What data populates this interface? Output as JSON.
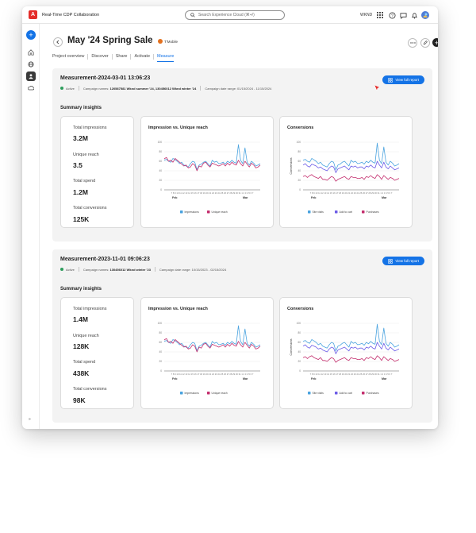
{
  "app": {
    "title": "Real-Time CDP Collaboration",
    "logo_letter": "A"
  },
  "search": {
    "placeholder": "Search Experience Cloud (⌘+/)"
  },
  "org": {
    "name": "WKND"
  },
  "page": {
    "title": "May '24 Spring Sale",
    "badge": "T’Mobile"
  },
  "tabs": [
    {
      "label": "Project overview",
      "active": false
    },
    {
      "label": "Discover",
      "active": false
    },
    {
      "label": "Share",
      "active": false
    },
    {
      "label": "Activate",
      "active": false
    },
    {
      "label": "Measure",
      "active": true
    }
  ],
  "view_full_report_label": "View full report",
  "summary_label": "Summary insights",
  "measurements": [
    {
      "title": "Measurement-2024-03-01 13:06:23",
      "status": "Active",
      "campaign_prefix": "Campaign names:",
      "campaign_names": "120587581 Wknd summer '24, 130456012 Wknd winter '24",
      "date_range": "Campaign date range: 01/15/2024 - 11/15/2024",
      "stats": [
        {
          "label": "Total impressions",
          "value": "3.2M"
        },
        {
          "label": "Unique reach",
          "value": "3.5"
        },
        {
          "label": "Total spend",
          "value": "1.2M"
        },
        {
          "label": "Total conversions",
          "value": "125K"
        }
      ]
    },
    {
      "title": "Measurement-2023-11-01 09:06:23",
      "status": "Active",
      "campaign_prefix": "Campaign names:",
      "campaign_names": "130456012 Wknd winter '23",
      "date_range": "Campaign date range: 10/15/2023 - 02/15/2024",
      "stats": [
        {
          "label": "Total impressions",
          "value": "1.4M"
        },
        {
          "label": "Unique reach",
          "value": "128K"
        },
        {
          "label": "Total spend",
          "value": "438K"
        },
        {
          "label": "Total conversions",
          "value": "98K"
        }
      ]
    }
  ],
  "colors": {
    "accent": "#1473e6",
    "impressions": "#4aa3df",
    "unique_reach": "#c42f6e",
    "site_visits": "#4aa3df",
    "add_to_cart": "#6c5ce7",
    "purchases": "#c42f6e"
  },
  "icons": {
    "back": "chevron-left-icon",
    "more": "more-icon",
    "edit": "pencil-icon",
    "add": "add-icon",
    "apps": "apps-grid-icon",
    "help": "help-icon",
    "chat": "chat-icon",
    "notifications": "bell-icon",
    "avatar": "avatar-icon"
  },
  "rail_expand": "»",
  "chart_data": [
    {
      "type": "line",
      "title": "Impression vs. Unique reach",
      "ylim": [
        0,
        100
      ],
      "yticks": [
        "100",
        "80",
        "60",
        "40",
        "20",
        "0"
      ],
      "xticks": "7 8 9 10 11 12 13 14 15 16 17 18 19 20 21 22 23 24 25 26 27 28 29 30 31 1 2 3 4 5 6 7",
      "months": [
        "Feb",
        "Mar"
      ],
      "series": [
        {
          "name": "Impressions",
          "values": [
            62,
            64,
            60,
            58,
            66,
            63,
            60,
            55,
            58,
            52,
            50,
            48,
            55,
            60,
            58,
            42,
            52,
            54,
            58,
            60,
            55,
            50,
            62,
            58,
            60,
            55,
            56,
            58,
            54,
            60,
            57,
            62,
            58,
            56,
            95,
            62,
            55,
            88,
            58,
            52,
            60,
            56,
            50,
            52,
            55
          ]
        },
        {
          "name": "Unique reach",
          "values": [
            65,
            68,
            60,
            62,
            58,
            66,
            62,
            58,
            54,
            50,
            52,
            46,
            48,
            55,
            52,
            40,
            50,
            48,
            56,
            58,
            52,
            48,
            56,
            54,
            52,
            50,
            52,
            55,
            50,
            56,
            52,
            58,
            54,
            52,
            62,
            55,
            50,
            60,
            54,
            48,
            56,
            52,
            46,
            48,
            52
          ]
        }
      ]
    },
    {
      "type": "line",
      "title": "Conversions",
      "ylabel": "Conversions",
      "ylim": [
        0,
        100
      ],
      "yticks": [
        "100",
        "80",
        "60",
        "40",
        "20",
        "0"
      ],
      "xticks": "7 8 9 10 11 12 13 14 15 16 17 18 19 20 21 22 23 24 25 26 27 28 29 30 31 1 2 3 4 5 6 7",
      "months": [
        "Feb",
        "Mar"
      ],
      "series": [
        {
          "name": "Site visits",
          "values": [
            62,
            64,
            60,
            58,
            66,
            63,
            60,
            55,
            58,
            52,
            50,
            48,
            55,
            60,
            58,
            42,
            52,
            54,
            58,
            60,
            55,
            50,
            62,
            58,
            60,
            55,
            56,
            58,
            54,
            60,
            57,
            62,
            58,
            56,
            98,
            62,
            55,
            90,
            58,
            52,
            60,
            56,
            50,
            52,
            55
          ]
        },
        {
          "name": "Add to cart",
          "values": [
            52,
            55,
            50,
            48,
            54,
            52,
            50,
            46,
            48,
            44,
            42,
            40,
            46,
            50,
            48,
            36,
            44,
            46,
            48,
            50,
            46,
            42,
            50,
            48,
            50,
            46,
            48,
            48,
            44,
            50,
            48,
            52,
            48,
            46,
            60,
            52,
            46,
            58,
            48,
            44,
            50,
            46,
            42,
            44,
            46
          ]
        },
        {
          "name": "Purchases",
          "values": [
            28,
            30,
            26,
            30,
            32,
            28,
            26,
            24,
            28,
            22,
            22,
            20,
            24,
            28,
            26,
            18,
            22,
            24,
            26,
            28,
            24,
            22,
            28,
            26,
            26,
            24,
            24,
            26,
            22,
            28,
            26,
            30,
            26,
            24,
            32,
            28,
            22,
            30,
            26,
            22,
            26,
            24,
            20,
            22,
            24
          ]
        }
      ]
    },
    {
      "type": "line",
      "title": "Impression vs. Unique reach",
      "ylim": [
        0,
        100
      ],
      "yticks": [
        "100",
        "80",
        "60",
        "40",
        "20",
        "0"
      ],
      "xticks": "7 8 9 10 11 12 13 14 15 16 17 18 19 20 21 22 23 24 25 26 27 28 29 30 31 1 2 3 4 5 6 7",
      "months": [
        "Feb",
        "Mar"
      ],
      "series": [
        {
          "name": "Impressions",
          "values": [
            62,
            64,
            60,
            58,
            66,
            63,
            60,
            55,
            58,
            52,
            50,
            48,
            55,
            60,
            58,
            42,
            52,
            54,
            58,
            60,
            55,
            50,
            62,
            58,
            60,
            55,
            56,
            58,
            54,
            60,
            57,
            62,
            58,
            56,
            95,
            62,
            55,
            88,
            58,
            52,
            60,
            56,
            50,
            52,
            55
          ]
        },
        {
          "name": "Unique reach",
          "values": [
            65,
            68,
            60,
            62,
            58,
            66,
            62,
            58,
            54,
            50,
            52,
            46,
            48,
            55,
            52,
            40,
            50,
            48,
            56,
            58,
            52,
            48,
            56,
            54,
            52,
            50,
            52,
            55,
            50,
            56,
            52,
            58,
            54,
            52,
            62,
            55,
            50,
            60,
            54,
            48,
            56,
            52,
            46,
            48,
            52
          ]
        }
      ]
    },
    {
      "type": "line",
      "title": "Conversions",
      "ylabel": "Conversions",
      "ylim": [
        0,
        100
      ],
      "yticks": [
        "100",
        "80",
        "60",
        "40",
        "20",
        "0"
      ],
      "xticks": "7 8 9 10 11 12 13 14 15 16 17 18 19 20 21 22 23 24 25 26 27 28 29 30 31 1 2 3 4 5 6 7",
      "months": [
        "Feb",
        "Mar"
      ],
      "series": [
        {
          "name": "Site visits",
          "values": [
            62,
            64,
            60,
            58,
            66,
            63,
            60,
            55,
            58,
            52,
            50,
            48,
            55,
            60,
            58,
            42,
            52,
            54,
            58,
            60,
            55,
            50,
            62,
            58,
            60,
            55,
            56,
            58,
            54,
            60,
            57,
            62,
            58,
            56,
            98,
            62,
            55,
            90,
            58,
            52,
            60,
            56,
            50,
            52,
            55
          ]
        },
        {
          "name": "Add to cart",
          "values": [
            52,
            55,
            50,
            48,
            54,
            52,
            50,
            46,
            48,
            44,
            42,
            40,
            46,
            50,
            48,
            36,
            44,
            46,
            48,
            50,
            46,
            42,
            50,
            48,
            50,
            46,
            48,
            48,
            44,
            50,
            48,
            52,
            48,
            46,
            60,
            52,
            46,
            58,
            48,
            44,
            50,
            46,
            42,
            44,
            46
          ]
        },
        {
          "name": "Purchases",
          "values": [
            28,
            30,
            26,
            30,
            32,
            28,
            26,
            24,
            28,
            22,
            22,
            20,
            24,
            28,
            26,
            18,
            22,
            24,
            26,
            28,
            24,
            22,
            28,
            26,
            26,
            24,
            24,
            26,
            22,
            28,
            26,
            30,
            26,
            24,
            32,
            28,
            22,
            30,
            26,
            22,
            26,
            24,
            20,
            22,
            24
          ]
        }
      ]
    }
  ]
}
